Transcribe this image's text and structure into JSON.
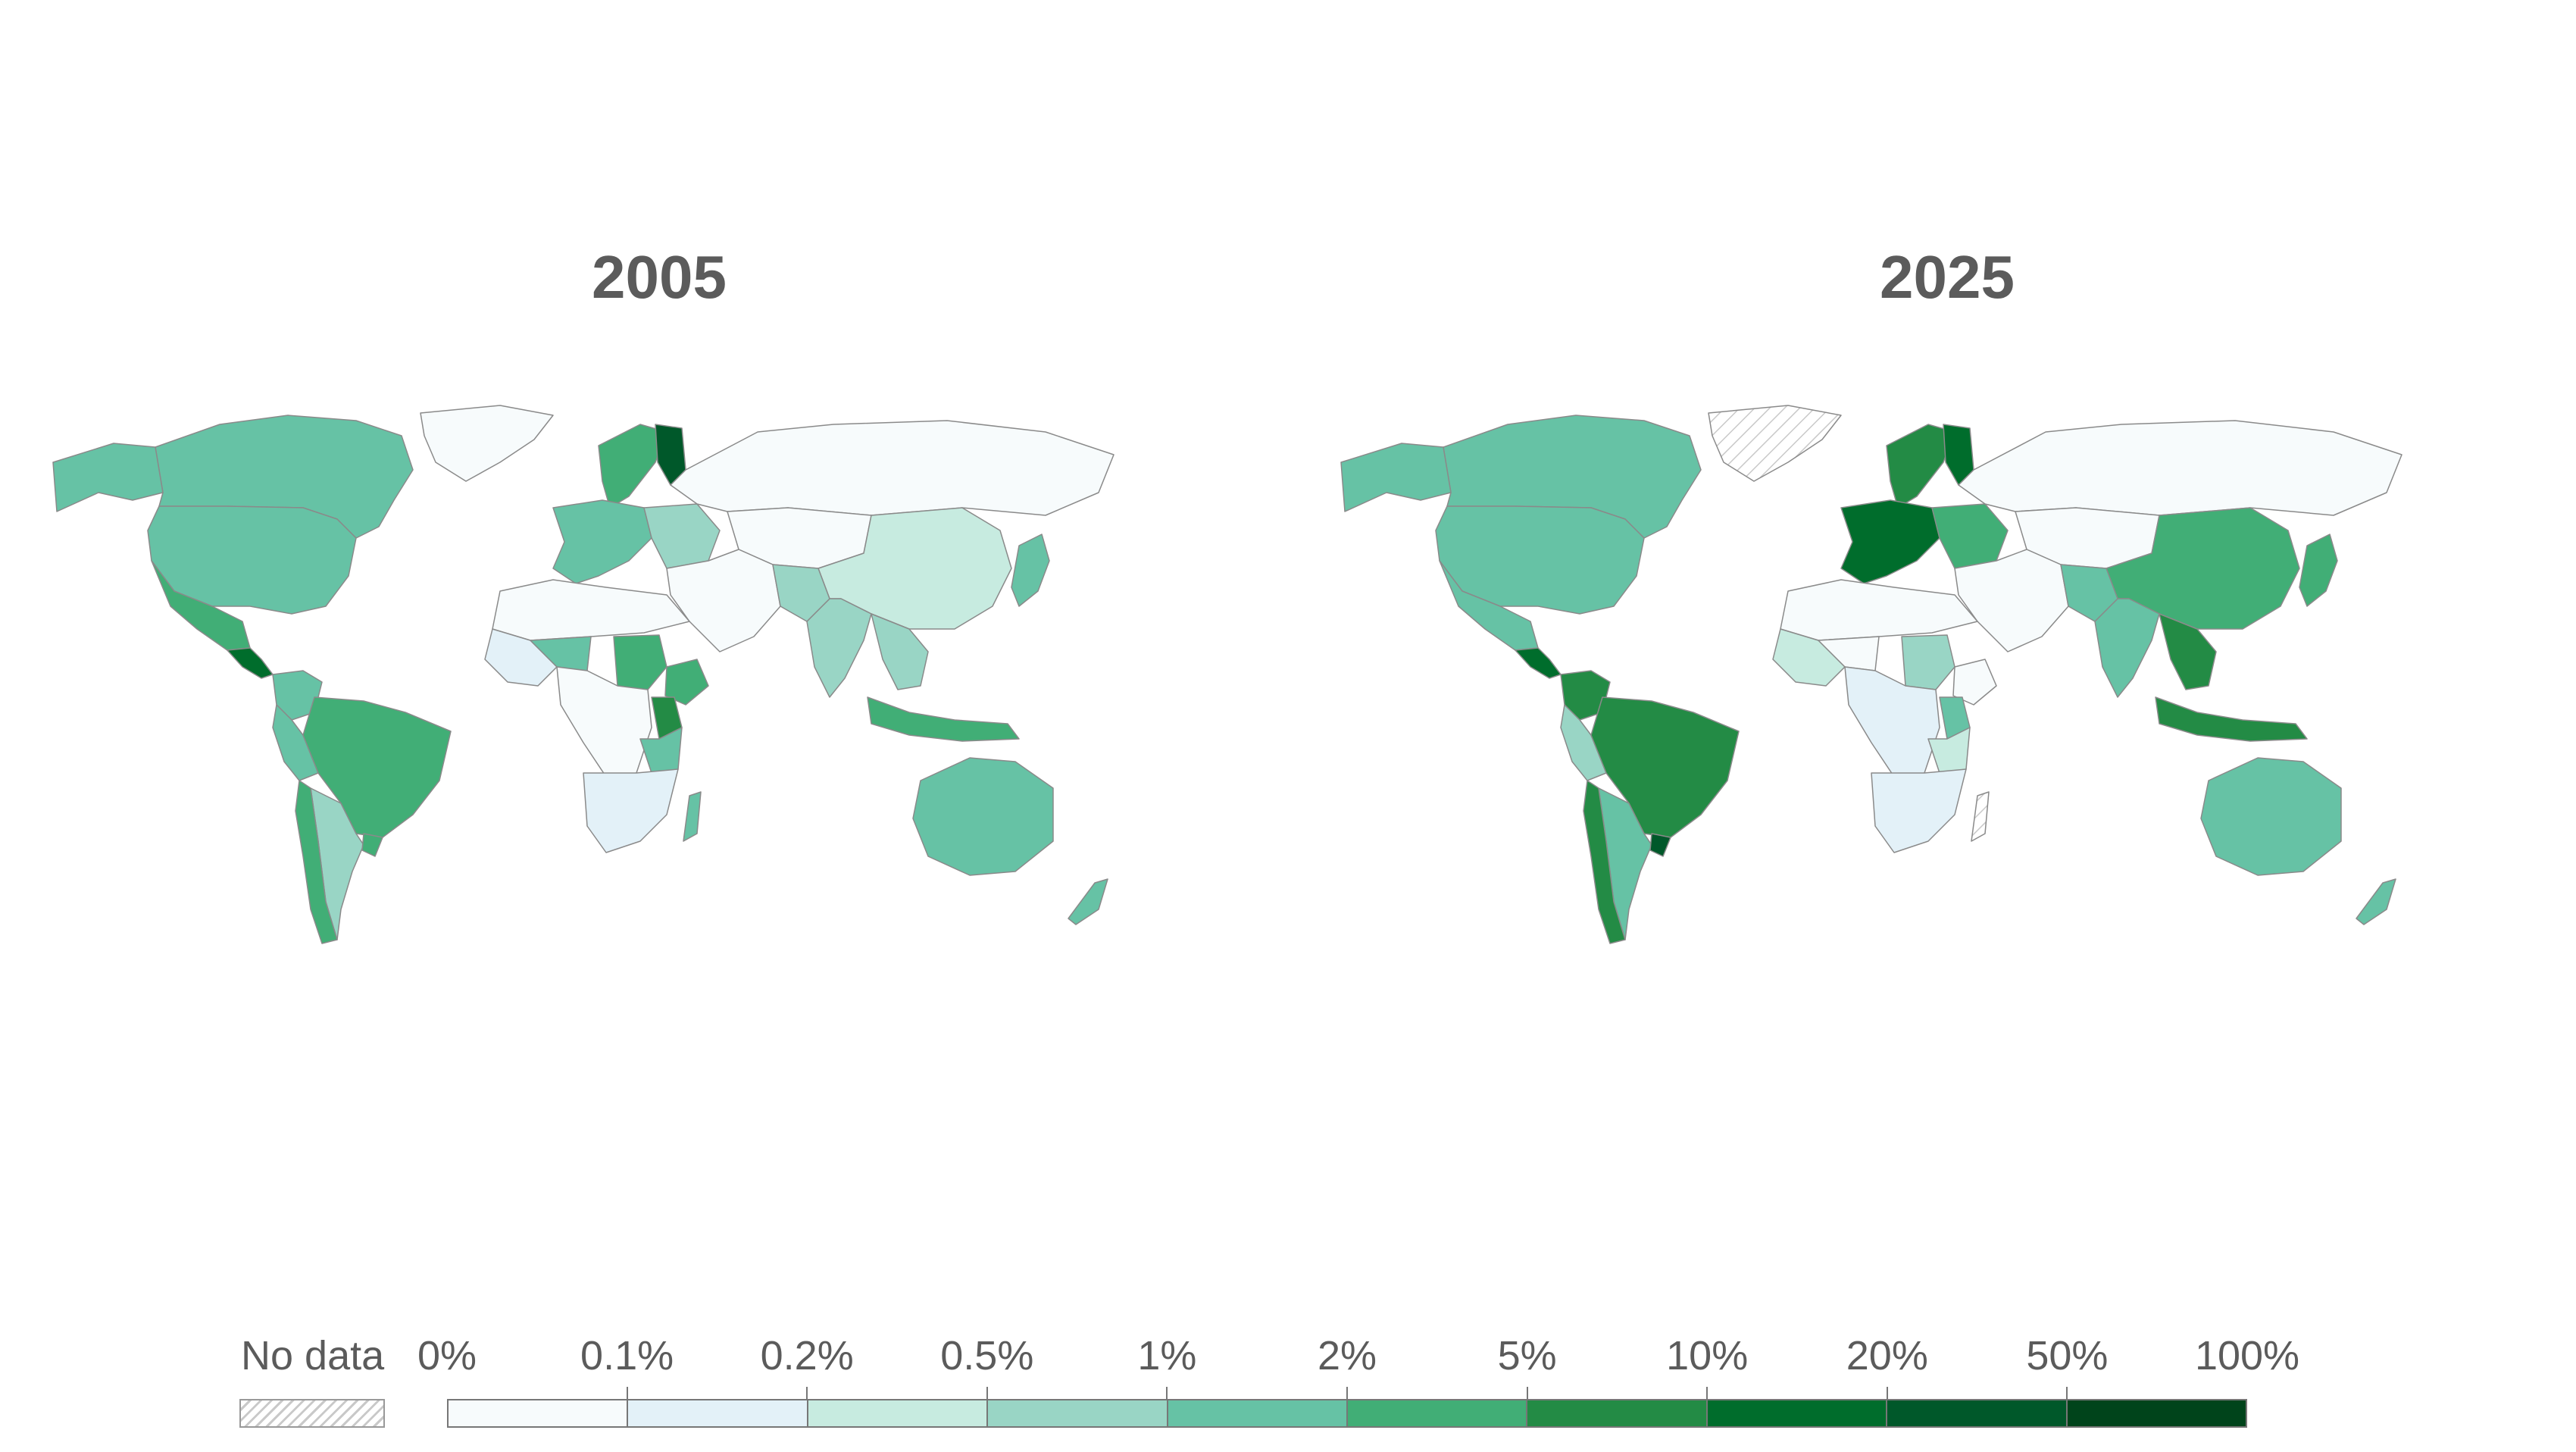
{
  "titles": [
    "2005",
    "2025"
  ],
  "legend": {
    "no_data_label": "No data",
    "tick_labels": [
      "0%",
      "0.1%",
      "0.2%",
      "0.5%",
      "1%",
      "2%",
      "5%",
      "10%",
      "20%",
      "50%",
      "100%"
    ],
    "bin_colors": [
      "#f7fbfc",
      "#e3f1f8",
      "#c7ebe0",
      "#99d5c5",
      "#66c2a5",
      "#41ae76",
      "#238b45",
      "#006d2c",
      "#00582a",
      "#00441b"
    ],
    "no_data_pattern_color": "#c9c9c9"
  },
  "maps": [
    {
      "year": "2005",
      "regions": [
        {
          "name": "Canada",
          "bin": 4
        },
        {
          "name": "United States",
          "bin": 4
        },
        {
          "name": "Alaska",
          "bin": 4
        },
        {
          "name": "Greenland",
          "bin": 0
        },
        {
          "name": "Mexico",
          "bin": 5
        },
        {
          "name": "Central America",
          "bin": 7
        },
        {
          "name": "Colombia",
          "bin": 4
        },
        {
          "name": "Peru",
          "bin": 4
        },
        {
          "name": "Brazil",
          "bin": 5
        },
        {
          "name": "Argentina",
          "bin": 3
        },
        {
          "name": "Chile",
          "bin": 5
        },
        {
          "name": "Uruguay",
          "bin": 5
        },
        {
          "name": "Scandinavia",
          "bin": 5
        },
        {
          "name": "Finland",
          "bin": 8
        },
        {
          "name": "Western Europe",
          "bin": 4
        },
        {
          "name": "Eastern Europe",
          "bin": 3
        },
        {
          "name": "Russia",
          "bin": 0
        },
        {
          "name": "Central Asia",
          "bin": 0
        },
        {
          "name": "Middle East",
          "bin": 0
        },
        {
          "name": "China",
          "bin": 2
        },
        {
          "name": "India",
          "bin": 3
        },
        {
          "name": "Pakistan",
          "bin": 3
        },
        {
          "name": "Japan",
          "bin": 4
        },
        {
          "name": "Southeast Asia",
          "bin": 3
        },
        {
          "name": "Indonesia",
          "bin": 5
        },
        {
          "name": "North Africa",
          "bin": 0
        },
        {
          "name": "West Africa",
          "bin": 1
        },
        {
          "name": "Mali",
          "bin": 4
        },
        {
          "name": "Sudan",
          "bin": 5
        },
        {
          "name": "Ethiopia",
          "bin": 5
        },
        {
          "name": "Kenya",
          "bin": 6
        },
        {
          "name": "Central Africa",
          "bin": 0
        },
        {
          "name": "Tanzania",
          "bin": 4
        },
        {
          "name": "Southern Africa",
          "bin": 1
        },
        {
          "name": "Madagascar",
          "bin": 4
        },
        {
          "name": "Australia",
          "bin": 4
        },
        {
          "name": "New Zealand",
          "bin": 4
        }
      ]
    },
    {
      "year": "2025",
      "regions": [
        {
          "name": "Canada",
          "bin": 4
        },
        {
          "name": "United States",
          "bin": 4
        },
        {
          "name": "Alaska",
          "bin": 4
        },
        {
          "name": "Greenland",
          "bin": -1
        },
        {
          "name": "Mexico",
          "bin": 4
        },
        {
          "name": "Central America",
          "bin": 7
        },
        {
          "name": "Colombia",
          "bin": 6
        },
        {
          "name": "Peru",
          "bin": 3
        },
        {
          "name": "Brazil",
          "bin": 6
        },
        {
          "name": "Argentina",
          "bin": 4
        },
        {
          "name": "Chile",
          "bin": 6
        },
        {
          "name": "Uruguay",
          "bin": 8
        },
        {
          "name": "Scandinavia",
          "bin": 6
        },
        {
          "name": "Finland",
          "bin": 7
        },
        {
          "name": "Western Europe",
          "bin": 7
        },
        {
          "name": "Eastern Europe",
          "bin": 5
        },
        {
          "name": "Russia",
          "bin": 0
        },
        {
          "name": "Central Asia",
          "bin": 0
        },
        {
          "name": "Middle East",
          "bin": 0
        },
        {
          "name": "China",
          "bin": 5
        },
        {
          "name": "India",
          "bin": 4
        },
        {
          "name": "Pakistan",
          "bin": 4
        },
        {
          "name": "Japan",
          "bin": 5
        },
        {
          "name": "Southeast Asia",
          "bin": 6
        },
        {
          "name": "Indonesia",
          "bin": 6
        },
        {
          "name": "North Africa",
          "bin": 0
        },
        {
          "name": "West Africa",
          "bin": 2
        },
        {
          "name": "Mali",
          "bin": 0
        },
        {
          "name": "Sudan",
          "bin": 3
        },
        {
          "name": "Ethiopia",
          "bin": 0
        },
        {
          "name": "Kenya",
          "bin": 4
        },
        {
          "name": "Central Africa",
          "bin": 1
        },
        {
          "name": "Tanzania",
          "bin": 2
        },
        {
          "name": "Southern Africa",
          "bin": 1
        },
        {
          "name": "Madagascar",
          "bin": -1
        },
        {
          "name": "Australia",
          "bin": 4
        },
        {
          "name": "New Zealand",
          "bin": 4
        }
      ]
    }
  ]
}
